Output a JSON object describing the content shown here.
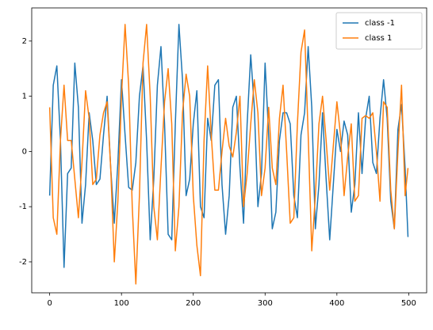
{
  "chart_data": {
    "type": "line",
    "x": [
      0,
      5,
      10,
      15,
      20,
      25,
      30,
      35,
      40,
      45,
      50,
      55,
      60,
      65,
      70,
      75,
      80,
      85,
      90,
      95,
      100,
      105,
      110,
      115,
      120,
      125,
      130,
      135,
      140,
      145,
      150,
      155,
      160,
      165,
      170,
      175,
      180,
      185,
      190,
      195,
      200,
      205,
      210,
      215,
      220,
      225,
      230,
      235,
      240,
      245,
      250,
      255,
      260,
      265,
      270,
      275,
      280,
      285,
      290,
      295,
      300,
      305,
      310,
      315,
      320,
      325,
      330,
      335,
      340,
      345,
      350,
      355,
      360,
      365,
      370,
      375,
      380,
      385,
      390,
      395,
      400,
      405,
      410,
      415,
      420,
      425,
      430,
      435,
      440,
      445,
      450,
      455,
      460,
      465,
      470,
      475,
      480,
      485,
      490,
      495,
      499
    ],
    "series": [
      {
        "name": "class -1",
        "color": "#1f77b4",
        "values": [
          -0.8,
          1.2,
          1.55,
          0.2,
          -2.1,
          -0.4,
          -0.3,
          1.6,
          0.8,
          -1.3,
          -0.6,
          0.7,
          0.2,
          -0.6,
          -0.5,
          0.3,
          1.0,
          -0.3,
          -1.3,
          -0.2,
          1.3,
          0.3,
          -0.65,
          -0.7,
          -0.2,
          1.0,
          1.55,
          0.2,
          -1.6,
          -0.5,
          1.2,
          1.9,
          0.5,
          -1.5,
          -1.6,
          0.5,
          2.3,
          1.3,
          -0.8,
          -0.5,
          0.5,
          1.1,
          -1.0,
          -1.2,
          0.6,
          0.2,
          1.2,
          1.3,
          -0.6,
          -1.5,
          -0.8,
          0.8,
          1.0,
          -0.3,
          -1.3,
          0.5,
          1.75,
          0.8,
          -1.0,
          -0.4,
          1.6,
          0.3,
          -1.4,
          -1.1,
          0.2,
          0.7,
          0.7,
          0.5,
          -0.8,
          -1.2,
          0.3,
          0.7,
          1.9,
          0.8,
          -1.4,
          -0.6,
          0.7,
          -0.5,
          -1.6,
          -0.6,
          0.4,
          0.0,
          0.55,
          0.3,
          -1.1,
          -0.6,
          0.7,
          -0.4,
          0.6,
          1.0,
          -0.2,
          -0.4,
          0.6,
          1.3,
          0.6,
          -0.9,
          -1.4,
          0.4,
          0.85,
          -0.3,
          -1.55
        ]
      },
      {
        "name": "class 1",
        "color": "#ff7f0e",
        "values": [
          0.8,
          -1.2,
          -1.5,
          0.2,
          1.2,
          0.2,
          0.2,
          -0.5,
          -1.2,
          -0.2,
          1.1,
          0.6,
          -0.6,
          -0.5,
          0.3,
          0.7,
          0.9,
          -0.3,
          -2.0,
          -0.9,
          1.0,
          2.3,
          1.2,
          -1.0,
          -2.4,
          -0.8,
          1.6,
          2.3,
          1.0,
          -1.0,
          -1.6,
          -0.3,
          0.9,
          1.5,
          0.5,
          -1.8,
          -1.0,
          0.7,
          1.4,
          1.0,
          -0.8,
          -1.7,
          -2.25,
          0.2,
          1.55,
          0.3,
          -0.7,
          -0.7,
          0.0,
          0.6,
          0.1,
          -0.1,
          0.35,
          1.0,
          -1.0,
          -0.4,
          0.5,
          1.3,
          0.7,
          -0.8,
          -0.3,
          0.8,
          -0.3,
          -0.6,
          0.6,
          1.2,
          0.0,
          -1.3,
          -1.2,
          0.5,
          1.8,
          2.2,
          0.3,
          -1.8,
          -0.8,
          0.5,
          1.0,
          0.2,
          -0.7,
          0.1,
          0.9,
          0.3,
          -0.8,
          -0.1,
          0.5,
          -0.9,
          -0.8,
          0.6,
          0.65,
          0.6,
          0.7,
          0.0,
          -0.9,
          0.9,
          0.8,
          -0.7,
          -1.4,
          0.0,
          1.2,
          -0.8,
          -0.3
        ]
      }
    ],
    "xlim": [
      -25,
      525
    ],
    "xticks": [
      0,
      100,
      200,
      300,
      400,
      500
    ],
    "ylim": [
      -2.56,
      2.6
    ],
    "yticks": [
      -2,
      -1,
      0,
      1,
      2
    ],
    "legend": "upper right"
  }
}
